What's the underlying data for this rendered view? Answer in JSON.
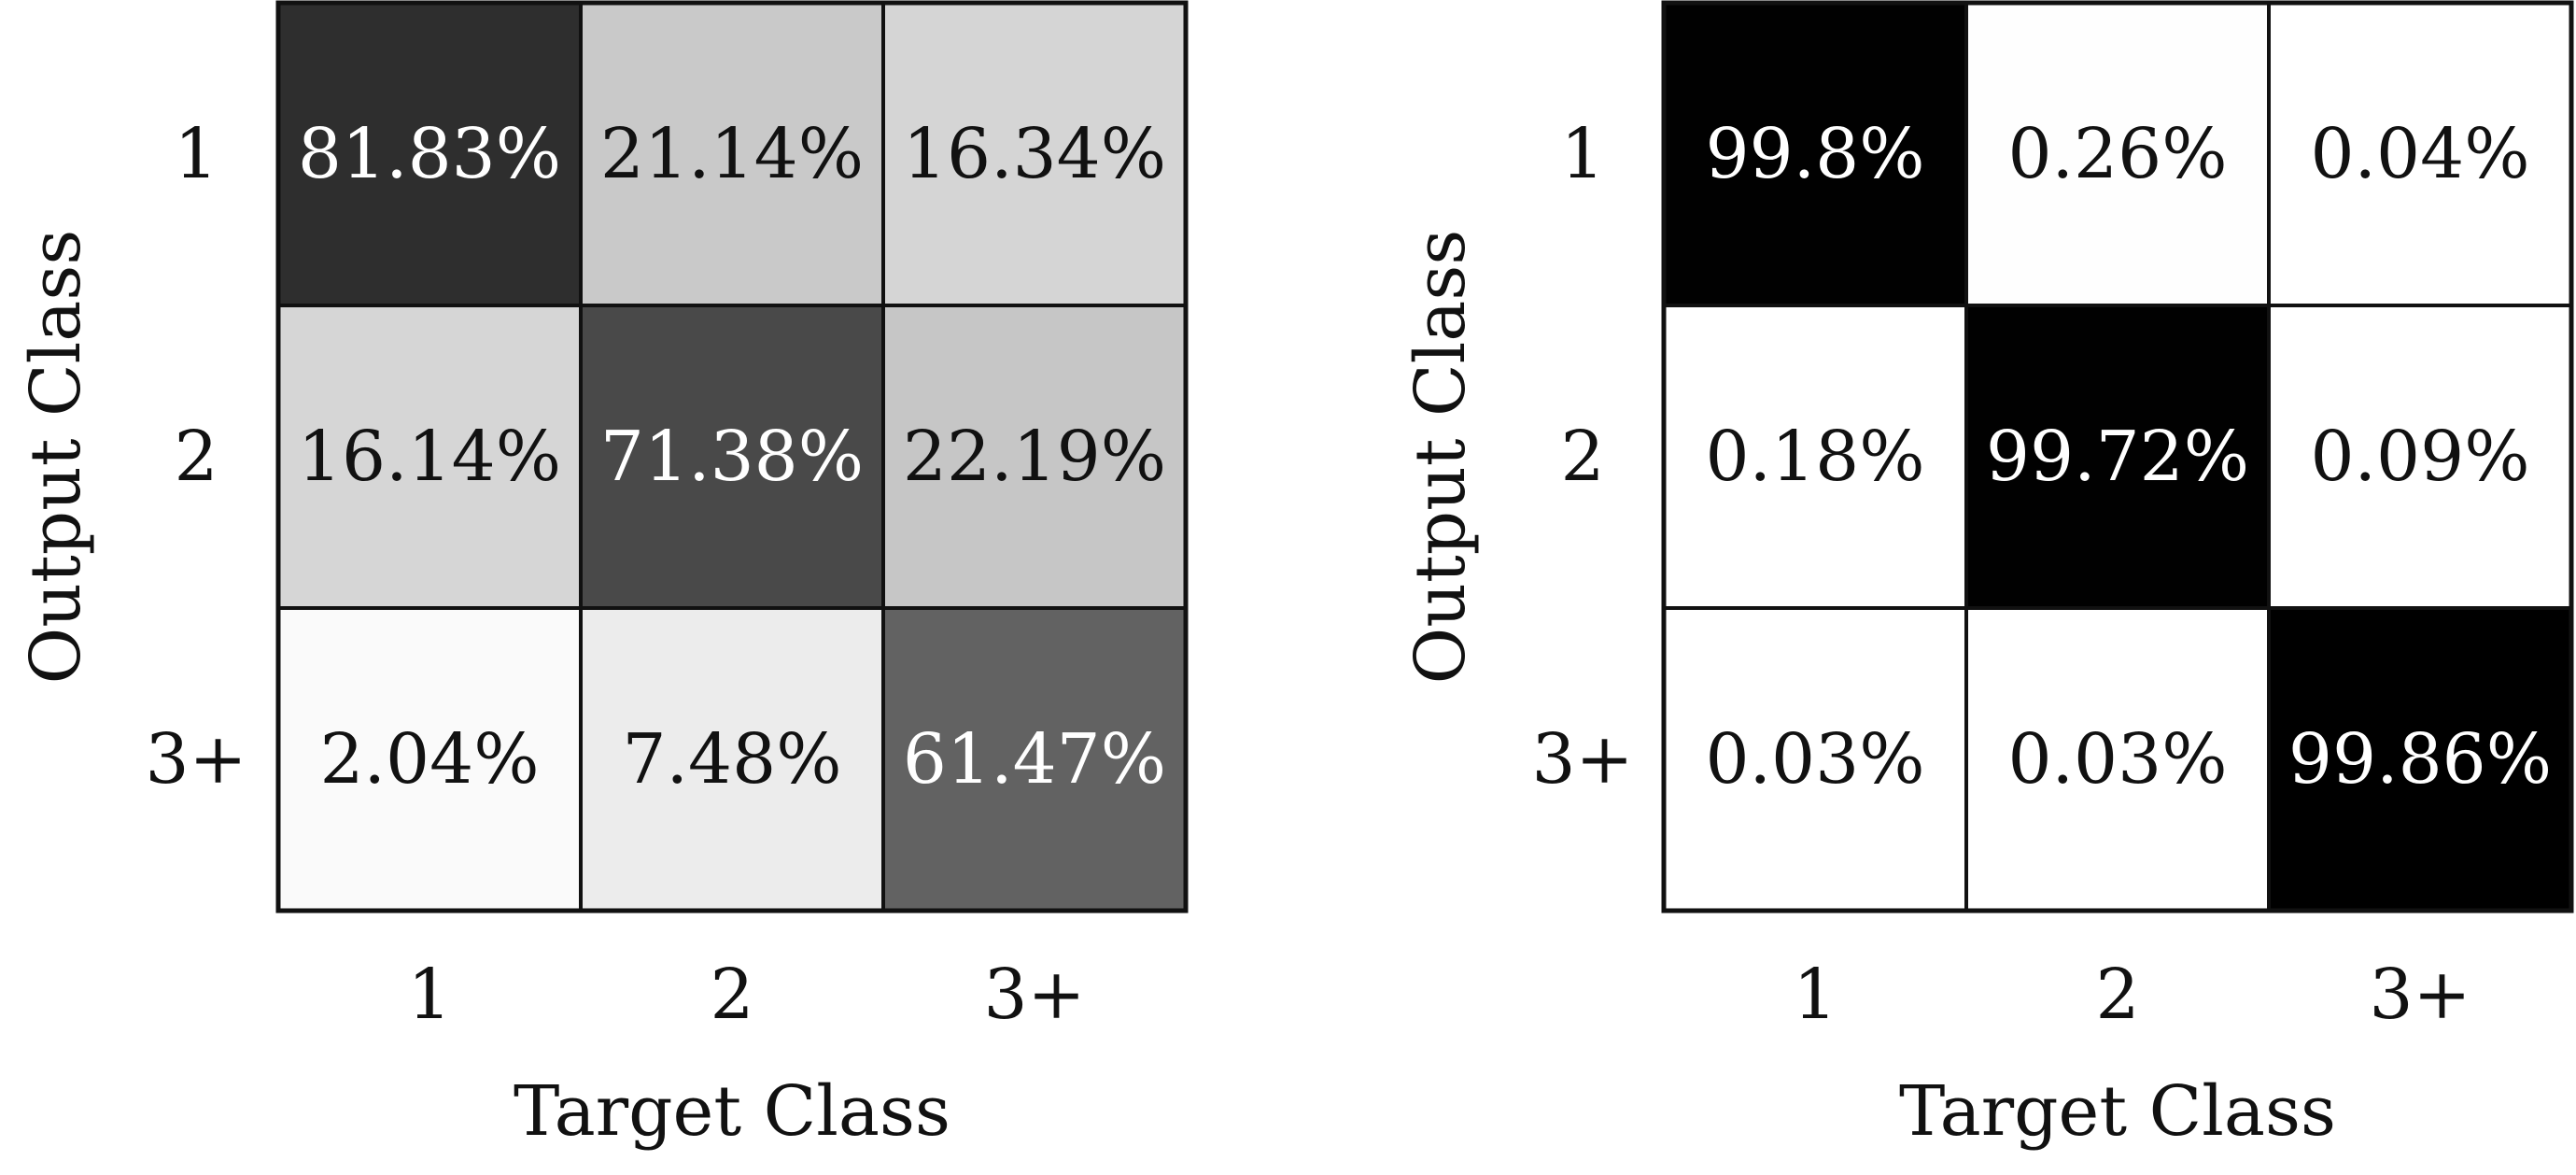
{
  "chart_data": [
    {
      "type": "heatmap",
      "xlabel": "Target Class",
      "ylabel": "Output Class",
      "x_categories": [
        "1",
        "2",
        "3+"
      ],
      "y_categories": [
        "1",
        "2",
        "3+"
      ],
      "cells": [
        [
          {
            "value": 81.83,
            "label": "81.83%"
          },
          {
            "value": 21.14,
            "label": "21.14%"
          },
          {
            "value": 16.34,
            "label": "16.34%"
          }
        ],
        [
          {
            "value": 16.14,
            "label": "16.14%"
          },
          {
            "value": 71.38,
            "label": "71.38%"
          },
          {
            "value": 22.19,
            "label": "22.19%"
          }
        ],
        [
          {
            "value": 2.04,
            "label": "2.04%"
          },
          {
            "value": 7.48,
            "label": "7.48%"
          },
          {
            "value": 61.47,
            "label": "61.47%"
          }
        ]
      ],
      "colormap": "grayscale (white = 0%, black = 100%)"
    },
    {
      "type": "heatmap",
      "xlabel": "Target Class",
      "ylabel": "Output Class",
      "x_categories": [
        "1",
        "2",
        "3+"
      ],
      "y_categories": [
        "1",
        "2",
        "3+"
      ],
      "cells": [
        [
          {
            "value": 99.8,
            "label": "99.8%"
          },
          {
            "value": 0.26,
            "label": "0.26%"
          },
          {
            "value": 0.04,
            "label": "0.04%"
          }
        ],
        [
          {
            "value": 0.18,
            "label": "0.18%"
          },
          {
            "value": 99.72,
            "label": "99.72%"
          },
          {
            "value": 0.09,
            "label": "0.09%"
          }
        ],
        [
          {
            "value": 0.03,
            "label": "0.03%"
          },
          {
            "value": 0.03,
            "label": "0.03%"
          },
          {
            "value": 99.86,
            "label": "99.86%"
          }
        ]
      ],
      "colormap": "grayscale (white = 0%, black = 100%)"
    }
  ]
}
